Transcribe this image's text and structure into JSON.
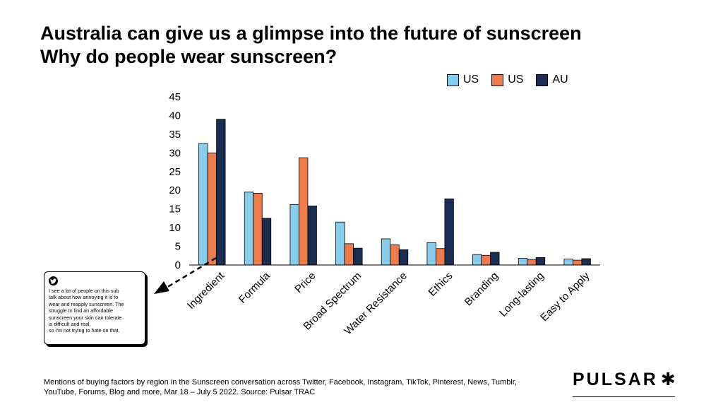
{
  "title": {
    "line1": "Australia can give us a glimpse into the future of sunscreen",
    "line2": "Why do people wear sunscreen?"
  },
  "colors": {
    "us1": "#87CDEB",
    "us2": "#EE7B4C",
    "au": "#1A2E51"
  },
  "chart_data": {
    "type": "bar",
    "title": "Why do people wear sunscreen?",
    "categories": [
      "Ingredient",
      "Formula",
      "Price",
      "Broad Spectrum",
      "Water Resistance",
      "Ethics",
      "Branding",
      "Long-lasting",
      "Easy to Apply"
    ],
    "series": [
      {
        "name": "US",
        "color": "#87CDEB",
        "values": [
          32.5,
          19.5,
          16.2,
          11.5,
          7.0,
          6.0,
          2.8,
          1.8,
          1.6
        ]
      },
      {
        "name": "US",
        "color": "#EE7B4C",
        "values": [
          30.0,
          19.2,
          28.7,
          5.7,
          5.4,
          4.4,
          2.6,
          1.5,
          1.3
        ]
      },
      {
        "name": "AU",
        "color": "#1A2E51",
        "values": [
          39.0,
          12.5,
          15.8,
          4.5,
          4.1,
          17.7,
          3.4,
          2.0,
          1.7
        ]
      }
    ],
    "ylim": [
      0,
      45
    ],
    "yticks": [
      0,
      5,
      10,
      15,
      20,
      25,
      30,
      35,
      40,
      45
    ],
    "xlabel": "",
    "ylabel": "",
    "grid": false,
    "legend": "top-right"
  },
  "quote": {
    "lines": [
      "I see a lot of people on this sub",
      "talk about how annoying it is to",
      "wear and reapply sunscreen. The",
      "struggle to find an affordable",
      "sunscreen your skin can tolerate",
      "is difficult and real,",
      "so I'm not trying to hate on that."
    ],
    "icon": "twitter-icon"
  },
  "footer": {
    "line1": "Mentions of buying factors by region in the Sunscreen conversation across Twitter, Facebook, Instagram, TikTok, Pinterest, News, Tumblr,",
    "line2": "YouTube, Forums, Blog and more, Mar 18  – July 5 2022. Source: Pulsar TRAC"
  },
  "logo": {
    "text": "PULSAR",
    "mark": "✱"
  }
}
